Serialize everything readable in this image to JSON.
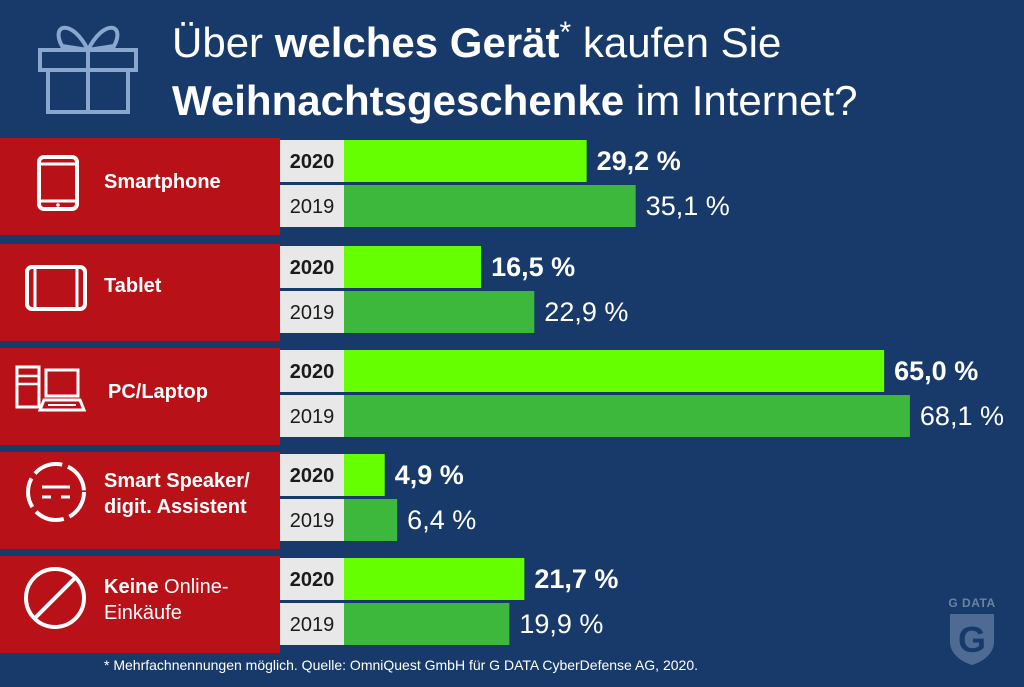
{
  "title": {
    "line1_pre": "Über ",
    "line1_bold": "welches Gerät",
    "line1_star": "*",
    "line1_post": " kaufen Sie",
    "line2_bold": "Weihnachtsgeschenke",
    "line2_post": " im Internet?"
  },
  "footnote": "* Mehrfachnennungen möglich. Quelle: OmniQuest GmbH für G DATA CyberDefense AG, 2020.",
  "logo_text": "G DATA",
  "colors": {
    "background": "#173a6a",
    "category_red": "#b81218",
    "bar_2020": "#66ff00",
    "bar_2019": "#3db83d",
    "year_label_bg": "#e8e8e8"
  },
  "chart_data": {
    "type": "bar",
    "orientation": "horizontal",
    "categories": [
      "Smartphone",
      "Tablet",
      "PC/Laptop",
      "Smart Speaker/ digit. Assistent",
      "Keine Online-Einkäufe"
    ],
    "category_icons": [
      "smartphone-icon",
      "tablet-icon",
      "pc-laptop-icon",
      "smart-speaker-icon",
      "no-shopping-icon"
    ],
    "series": [
      {
        "name": "2020",
        "values": [
          29.2,
          16.5,
          65.0,
          4.9,
          21.7
        ],
        "labels": [
          "29,2 %",
          "16,5 %",
          "65,0 %",
          "4,9 %",
          "21,7 %"
        ]
      },
      {
        "name": "2019",
        "values": [
          35.1,
          22.9,
          68.1,
          6.4,
          19.9
        ],
        "labels": [
          "35,1 %",
          "22,9 %",
          "68,1 %",
          "6,4 %",
          "19,9 %"
        ]
      }
    ],
    "unit": "%",
    "xlim": [
      0,
      100
    ]
  },
  "categories_display": [
    {
      "text": "Smartphone"
    },
    {
      "text": "Tablet"
    },
    {
      "text": "PC/Laptop"
    },
    {
      "line1": "Smart Speaker/",
      "line2": "digit. Assistent"
    },
    {
      "bold": "Keine",
      "rest": " Online-",
      "line2": "Einkäufe"
    }
  ]
}
